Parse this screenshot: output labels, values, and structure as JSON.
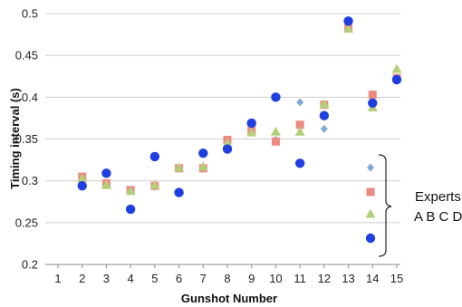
{
  "chart_data": {
    "type": "scatter",
    "xlabel": "Gunshot Number",
    "ylabel": "Timing interval (s)",
    "xlim": [
      1,
      15
    ],
    "ylim": [
      0.2,
      0.5
    ],
    "x_ticks": [
      1,
      2,
      3,
      4,
      5,
      6,
      7,
      8,
      9,
      10,
      11,
      12,
      13,
      14,
      15
    ],
    "y_ticks": [
      0.2,
      0.25,
      0.3,
      0.35,
      0.4,
      0.45,
      0.5
    ],
    "grid": "horizontal",
    "legend_title": "Experts",
    "legend_label": "A B C D",
    "legend_position": "right, bracketed",
    "series": [
      {
        "label": "A",
        "marker": "diamond",
        "color": "#7ea6d6",
        "points": [
          {
            "x": 2,
            "y": 0.304
          },
          {
            "x": 3,
            "y": 0.296
          },
          {
            "x": 4,
            "y": 0.289
          },
          {
            "x": 5,
            "y": 0.293
          },
          {
            "x": 6,
            "y": 0.315
          },
          {
            "x": 7,
            "y": 0.315
          },
          {
            "x": 8,
            "y": 0.346
          },
          {
            "x": 9,
            "y": 0.36
          },
          {
            "x": 10,
            "y": 0.349
          },
          {
            "x": 11,
            "y": 0.394
          },
          {
            "x": 12,
            "y": 0.362
          },
          {
            "x": 13,
            "y": 0.483
          },
          {
            "x": 14,
            "y": 0.39
          },
          {
            "x": 15,
            "y": 0.423
          }
        ]
      },
      {
        "label": "B",
        "marker": "square",
        "color": "#ee8a84",
        "points": [
          {
            "x": 2,
            "y": 0.305
          },
          {
            "x": 3,
            "y": 0.297
          },
          {
            "x": 4,
            "y": 0.289
          },
          {
            "x": 5,
            "y": 0.294
          },
          {
            "x": 6,
            "y": 0.315
          },
          {
            "x": 7,
            "y": 0.315
          },
          {
            "x": 8,
            "y": 0.349
          },
          {
            "x": 9,
            "y": 0.36
          },
          {
            "x": 10,
            "y": 0.347
          },
          {
            "x": 11,
            "y": 0.367
          },
          {
            "x": 12,
            "y": 0.391
          },
          {
            "x": 13,
            "y": 0.483
          },
          {
            "x": 14,
            "y": 0.403
          },
          {
            "x": 15,
            "y": 0.423
          }
        ]
      },
      {
        "label": "C",
        "marker": "triangle",
        "color": "#b3cf7a",
        "points": [
          {
            "x": 2,
            "y": 0.303
          },
          {
            "x": 3,
            "y": 0.295
          },
          {
            "x": 4,
            "y": 0.288
          },
          {
            "x": 5,
            "y": 0.295
          },
          {
            "x": 6,
            "y": 0.316
          },
          {
            "x": 7,
            "y": 0.317
          },
          {
            "x": 8,
            "y": 0.345
          },
          {
            "x": 9,
            "y": 0.358
          },
          {
            "x": 10,
            "y": 0.359
          },
          {
            "x": 11,
            "y": 0.359
          },
          {
            "x": 12,
            "y": 0.392
          },
          {
            "x": 13,
            "y": 0.482
          },
          {
            "x": 14,
            "y": 0.388
          },
          {
            "x": 15,
            "y": 0.434
          }
        ]
      },
      {
        "label": "D",
        "marker": "circle",
        "color": "#1f3fe0",
        "points": [
          {
            "x": 2,
            "y": 0.294
          },
          {
            "x": 3,
            "y": 0.309
          },
          {
            "x": 4,
            "y": 0.266
          },
          {
            "x": 5,
            "y": 0.329
          },
          {
            "x": 6,
            "y": 0.286
          },
          {
            "x": 7,
            "y": 0.333
          },
          {
            "x": 8,
            "y": 0.338
          },
          {
            "x": 9,
            "y": 0.369
          },
          {
            "x": 10,
            "y": 0.4
          },
          {
            "x": 11,
            "y": 0.321
          },
          {
            "x": 12,
            "y": 0.378
          },
          {
            "x": 13,
            "y": 0.491
          },
          {
            "x": 14,
            "y": 0.393
          },
          {
            "x": 15,
            "y": 0.421
          }
        ]
      }
    ]
  }
}
